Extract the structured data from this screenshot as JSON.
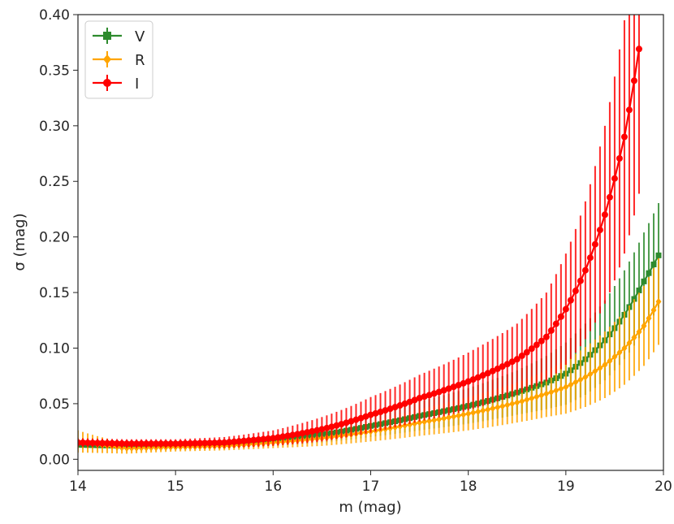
{
  "chart_data": {
    "type": "line",
    "title": "",
    "xlabel": "m (mag)",
    "ylabel": "σ (mag)",
    "xlim": [
      14,
      20
    ],
    "ylim": [
      -0.01,
      0.4
    ],
    "xticks": [
      "14",
      "15",
      "16",
      "17",
      "18",
      "19",
      "20"
    ],
    "yticks": [
      "0.00",
      "0.05",
      "0.10",
      "0.15",
      "0.20",
      "0.25",
      "0.30",
      "0.35",
      "0.40"
    ],
    "grid": false,
    "legend": "top-left",
    "x": [
      14.0,
      14.5,
      15.0,
      15.5,
      16.0,
      16.5,
      17.0,
      17.5,
      18.0,
      18.5,
      18.8,
      19.0,
      19.2,
      19.4,
      19.6,
      19.8,
      20.0
    ],
    "series": [
      {
        "name": "V",
        "color": "#2e8b2e",
        "marker": "square",
        "values": [
          0.013,
          0.012,
          0.013,
          0.014,
          0.017,
          0.022,
          0.03,
          0.039,
          0.048,
          0.06,
          0.069,
          0.077,
          0.09,
          0.107,
          0.13,
          0.16,
          0.192
        ],
        "errors": [
          0.003,
          0.003,
          0.003,
          0.004,
          0.005,
          0.007,
          0.01,
          0.013,
          0.016,
          0.02,
          0.024,
          0.028,
          0.032,
          0.036,
          0.04,
          0.044,
          0.048
        ]
      },
      {
        "name": "R",
        "color": "#ffa500",
        "marker": "diamond",
        "values": [
          0.016,
          0.01,
          0.011,
          0.012,
          0.015,
          0.019,
          0.025,
          0.033,
          0.041,
          0.051,
          0.059,
          0.065,
          0.074,
          0.085,
          0.1,
          0.12,
          0.15
        ],
        "errors": [
          0.01,
          0.005,
          0.004,
          0.004,
          0.005,
          0.007,
          0.009,
          0.012,
          0.015,
          0.018,
          0.021,
          0.024,
          0.027,
          0.03,
          0.033,
          0.036,
          0.04
        ]
      },
      {
        "name": "I",
        "color": "#ff0000",
        "marker": "circle",
        "values": [
          0.015,
          0.014,
          0.014,
          0.015,
          0.019,
          0.027,
          0.04,
          0.055,
          0.07,
          0.09,
          0.11,
          0.135,
          0.17,
          0.22,
          0.29,
          0.4,
          null
        ],
        "errors": [
          0.004,
          0.004,
          0.004,
          0.005,
          0.007,
          0.011,
          0.016,
          0.021,
          0.026,
          0.032,
          0.04,
          0.05,
          0.062,
          0.08,
          0.105,
          0.14,
          null
        ]
      }
    ]
  }
}
